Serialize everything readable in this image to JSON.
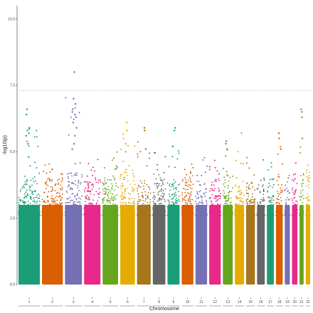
{
  "chart_data": {
    "type": "scatter",
    "title": "",
    "xlabel": "Chromosome",
    "ylabel": "-log10(p)",
    "ylim": [
      0,
      10.5
    ],
    "yticks": [
      {
        "value": 0,
        "label": "0.0"
      },
      {
        "value": 2.5,
        "label": "2.5"
      },
      {
        "value": 5,
        "label": "5.0"
      },
      {
        "value": 7.5,
        "label": "7.5"
      },
      {
        "value": 10,
        "label": "10.0"
      }
    ],
    "significance_threshold": 7.3,
    "threshold_style": "dashed, light gray",
    "grid": false,
    "legend": "none",
    "baseline_note": "each chromosome shows a dense band of points from 0 to roughly 3.8",
    "chromosomes": [
      {
        "label": "1",
        "color": "#1b9e77",
        "dense_top": 4.1,
        "max": 6.6
      },
      {
        "label": "2",
        "color": "#d95f02",
        "dense_top": 4.0,
        "max": 4.9
      },
      {
        "label": "3",
        "color": "#7570b3",
        "dense_top": 4.2,
        "max": 8.0
      },
      {
        "label": "4",
        "color": "#e7298a",
        "dense_top": 4.0,
        "max": 5.0
      },
      {
        "label": "5",
        "color": "#66a61e",
        "dense_top": 4.1,
        "max": 5.3
      },
      {
        "label": "6",
        "color": "#e6ab02",
        "dense_top": 4.4,
        "max": 6.1
      },
      {
        "label": "7",
        "color": "#a6761d",
        "dense_top": 4.0,
        "max": 5.9
      },
      {
        "label": "8",
        "color": "#666666",
        "dense_top": 4.2,
        "max": 5.3
      },
      {
        "label": "9",
        "color": "#1b9e77",
        "dense_top": 4.0,
        "max": 5.9
      },
      {
        "label": "10",
        "color": "#d95f02",
        "dense_top": 4.1,
        "max": 5.1
      },
      {
        "label": "11",
        "color": "#7570b3",
        "dense_top": 3.9,
        "max": 5.1
      },
      {
        "label": "12",
        "color": "#e7298a",
        "dense_top": 4.0,
        "max": 5.1
      },
      {
        "label": "13",
        "color": "#66a61e",
        "dense_top": 4.1,
        "max": 5.4
      },
      {
        "label": "14",
        "color": "#e6ab02",
        "dense_top": 3.9,
        "max": 5.7
      },
      {
        "label": "15",
        "color": "#a6761d",
        "dense_top": 4.0,
        "max": 5.3
      },
      {
        "label": "16",
        "color": "#666666",
        "dense_top": 3.9,
        "max": 5.1
      },
      {
        "label": "17",
        "color": "#1b9e77",
        "dense_top": 4.0,
        "max": 4.9
      },
      {
        "label": "18",
        "color": "#d95f02",
        "dense_top": 4.2,
        "max": 5.7
      },
      {
        "label": "19",
        "color": "#7570b3",
        "dense_top": 3.9,
        "max": 4.9
      },
      {
        "label": "20",
        "color": "#e7298a",
        "dense_top": 4.0,
        "max": 4.9
      },
      {
        "label": "21",
        "color": "#66a61e",
        "dense_top": 4.4,
        "max": 6.6
      },
      {
        "label": "22",
        "color": "#e6ab02",
        "dense_top": 4.3,
        "max": 5.5
      }
    ],
    "peaks": [
      {
        "chr": "1",
        "values": [
          6.6,
          6.4,
          5.9,
          5.8,
          5.7,
          5.6,
          5.3,
          4.8
        ]
      },
      {
        "chr": "3",
        "values": [
          8.0,
          7.0,
          6.8,
          6.6,
          6.5,
          6.4,
          6.3,
          6.1,
          5.9,
          5.6,
          5.3,
          5.1
        ]
      },
      {
        "chr": "6",
        "values": [
          6.1,
          5.8,
          5.3,
          5.0
        ]
      },
      {
        "chr": "7",
        "values": [
          5.9,
          5.8,
          5.1
        ]
      },
      {
        "chr": "9",
        "values": [
          5.9,
          5.8,
          5.2
        ]
      },
      {
        "chr": "13",
        "values": [
          5.4,
          5.3,
          5.1
        ]
      },
      {
        "chr": "14",
        "values": [
          5.7
        ]
      },
      {
        "chr": "18",
        "values": [
          5.7,
          5.5,
          5.1
        ]
      },
      {
        "chr": "21",
        "values": [
          6.6,
          6.5,
          6.3,
          5.5
        ]
      }
    ]
  }
}
